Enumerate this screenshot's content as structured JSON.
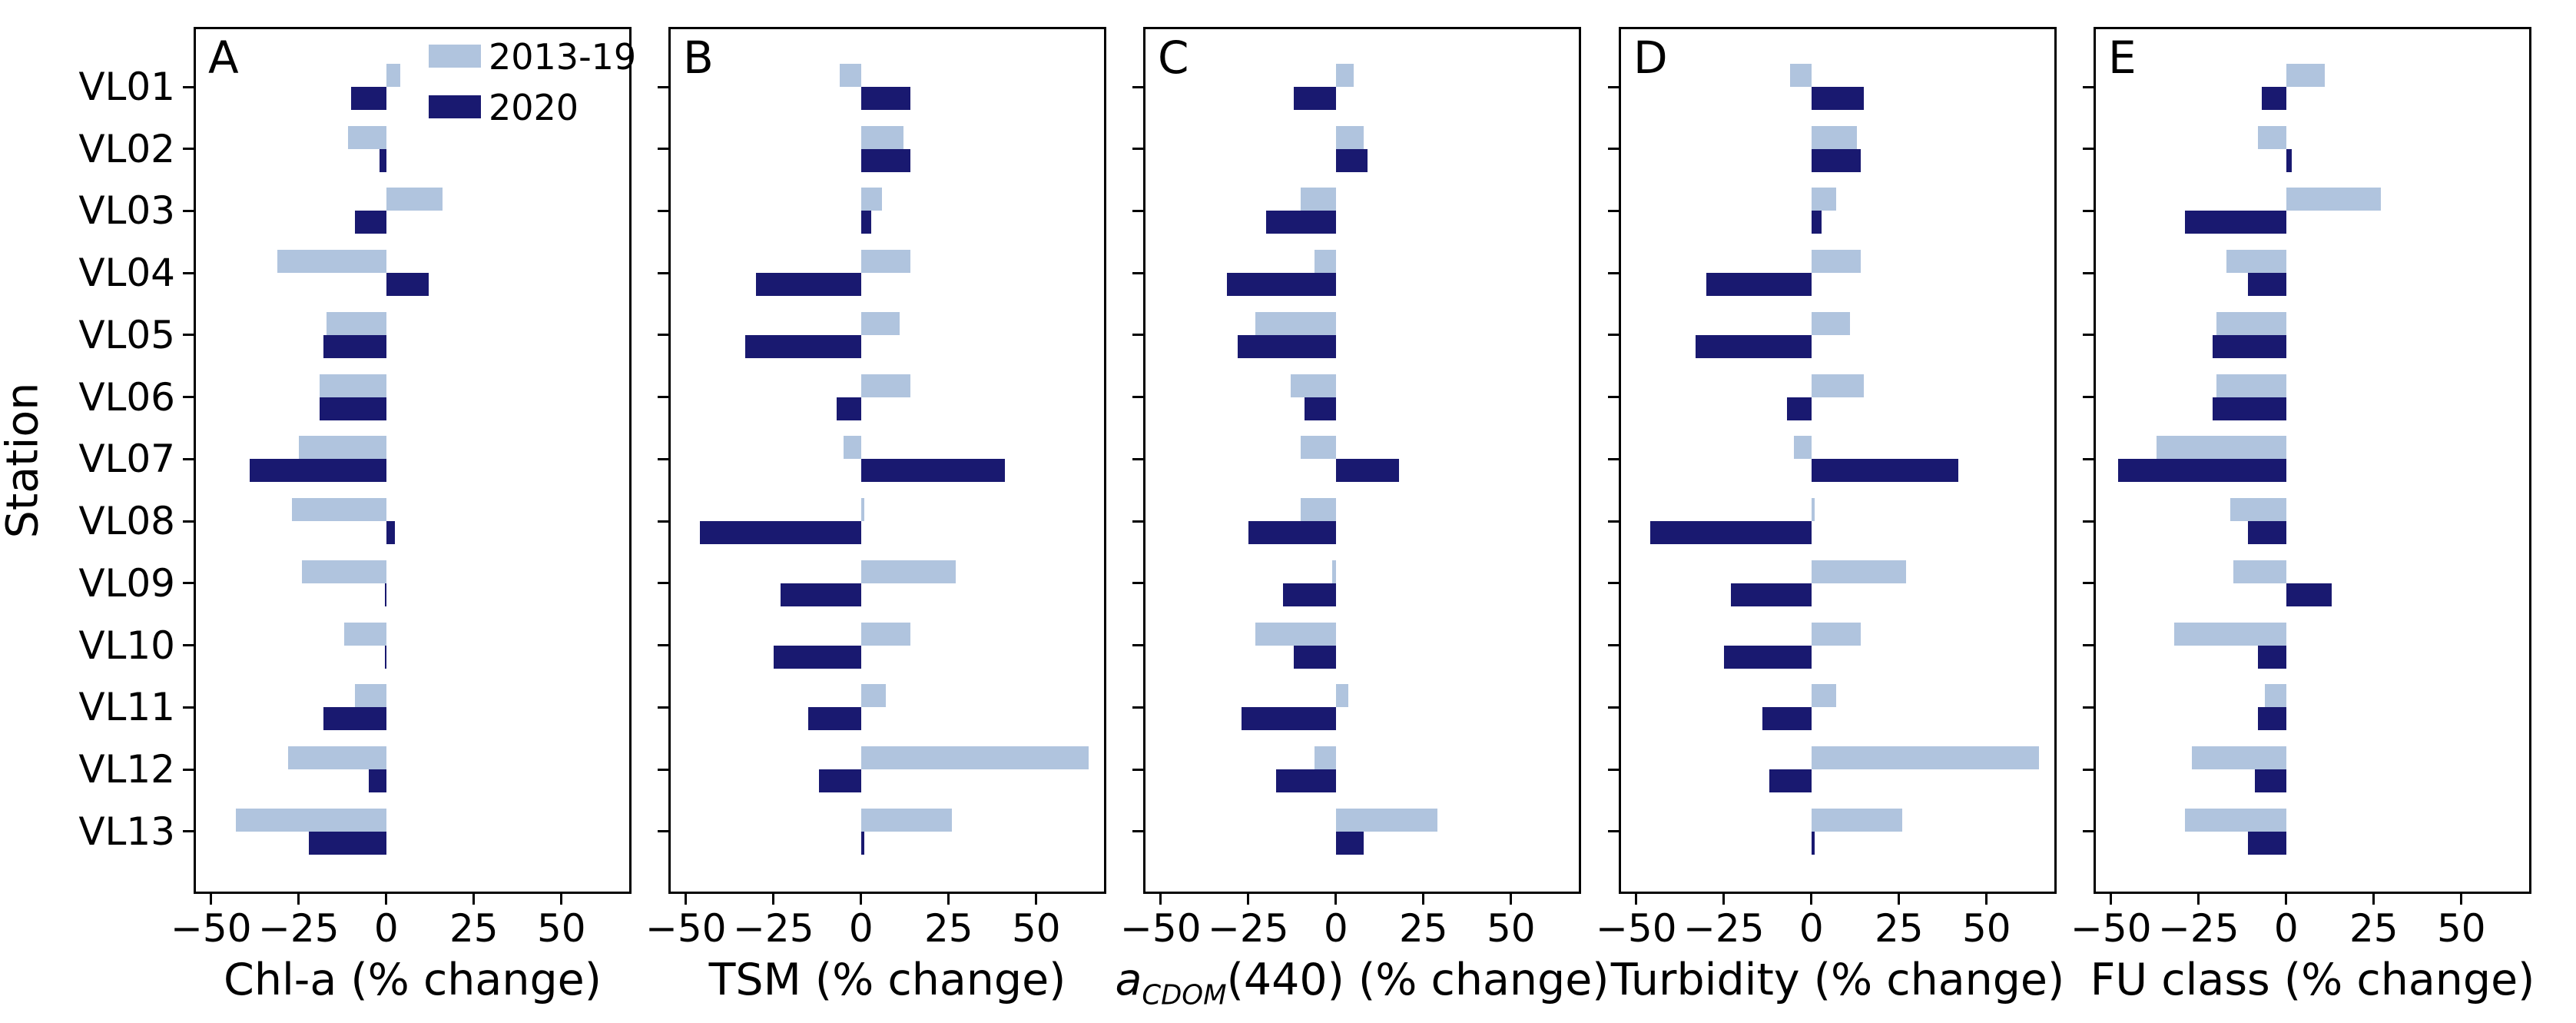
{
  "figure": {
    "ylabel": "Station",
    "background": "#ffffff",
    "axis_color": "#000000",
    "legend": {
      "position": "top-right-of-panel-A",
      "items": [
        {
          "label": "2013-19",
          "color": "#b0c4de"
        },
        {
          "label": "2020",
          "color": "#191970"
        }
      ]
    }
  },
  "chart_data": {
    "type": "bar",
    "orientation": "horizontal",
    "grid": false,
    "ylabel": "Station",
    "categories": [
      "VL01",
      "VL02",
      "VL03",
      "VL04",
      "VL05",
      "VL06",
      "VL07",
      "VL08",
      "VL09",
      "VL10",
      "VL11",
      "VL12",
      "VL13"
    ],
    "xlim": [
      -55,
      70
    ],
    "xticks": [
      -50,
      -25,
      0,
      25,
      50
    ],
    "series_colors": {
      "2013-19": "#b0c4de",
      "2020": "#191970"
    },
    "panels": [
      {
        "label": "A",
        "xlabel": "Chl-a (% change)",
        "series": [
          {
            "name": "2013-19",
            "values": [
              4,
              -11,
              16,
              -31,
              -17,
              -19,
              -25,
              -27,
              -24,
              -12,
              -9,
              -28,
              -43
            ]
          },
          {
            "name": "2020",
            "values": [
              -10,
              -2,
              -9,
              12,
              -18,
              -19,
              -39,
              2.5,
              -0.5,
              -0.5,
              -18,
              -5,
              -22
            ]
          }
        ]
      },
      {
        "label": "B",
        "xlabel": "TSM (% change)",
        "series": [
          {
            "name": "2013-19",
            "values": [
              -6,
              12,
              6,
              14,
              11,
              14,
              -5,
              1,
              27,
              14,
              7,
              65,
              26
            ]
          },
          {
            "name": "2020",
            "values": [
              14,
              14,
              3,
              -30,
              -33,
              -7,
              41,
              -46,
              -23,
              -25,
              -15,
              -12,
              1
            ]
          }
        ]
      },
      {
        "label": "C",
        "xlabel": "aCDOM(440) (% change)",
        "xlabel_math": {
          "italic": "a",
          "sub": "CDOM",
          "rest": "(440) (% change)"
        },
        "series": [
          {
            "name": "2013-19",
            "values": [
              5,
              8,
              -10,
              -6,
              -23,
              -13,
              -10,
              -10,
              -1,
              -23,
              3.5,
              -6,
              29
            ]
          },
          {
            "name": "2020",
            "values": [
              -12,
              9,
              -20,
              -31,
              -28,
              -9,
              18,
              -25,
              -15,
              -12,
              -27,
              -17,
              8
            ]
          }
        ]
      },
      {
        "label": "D",
        "xlabel": "Turbidity (% change)",
        "series": [
          {
            "name": "2013-19",
            "values": [
              -6,
              13,
              7,
              14,
              11,
              15,
              -5,
              1,
              27,
              14,
              7,
              65,
              26
            ]
          },
          {
            "name": "2020",
            "values": [
              15,
              14,
              3,
              -30,
              -33,
              -7,
              42,
              -46,
              -23,
              -25,
              -14,
              -12,
              1
            ]
          }
        ]
      },
      {
        "label": "E",
        "xlabel": "FU class (% change)",
        "series": [
          {
            "name": "2013-19",
            "values": [
              11,
              -8,
              27,
              -17,
              -20,
              -20,
              -37,
              -16,
              -15,
              -32,
              -6,
              -27,
              -29
            ]
          },
          {
            "name": "2020",
            "values": [
              -7,
              1.5,
              -29,
              -11,
              -21,
              -21,
              -48,
              -11,
              13,
              -8,
              -8,
              -9,
              -11
            ]
          }
        ]
      }
    ]
  }
}
